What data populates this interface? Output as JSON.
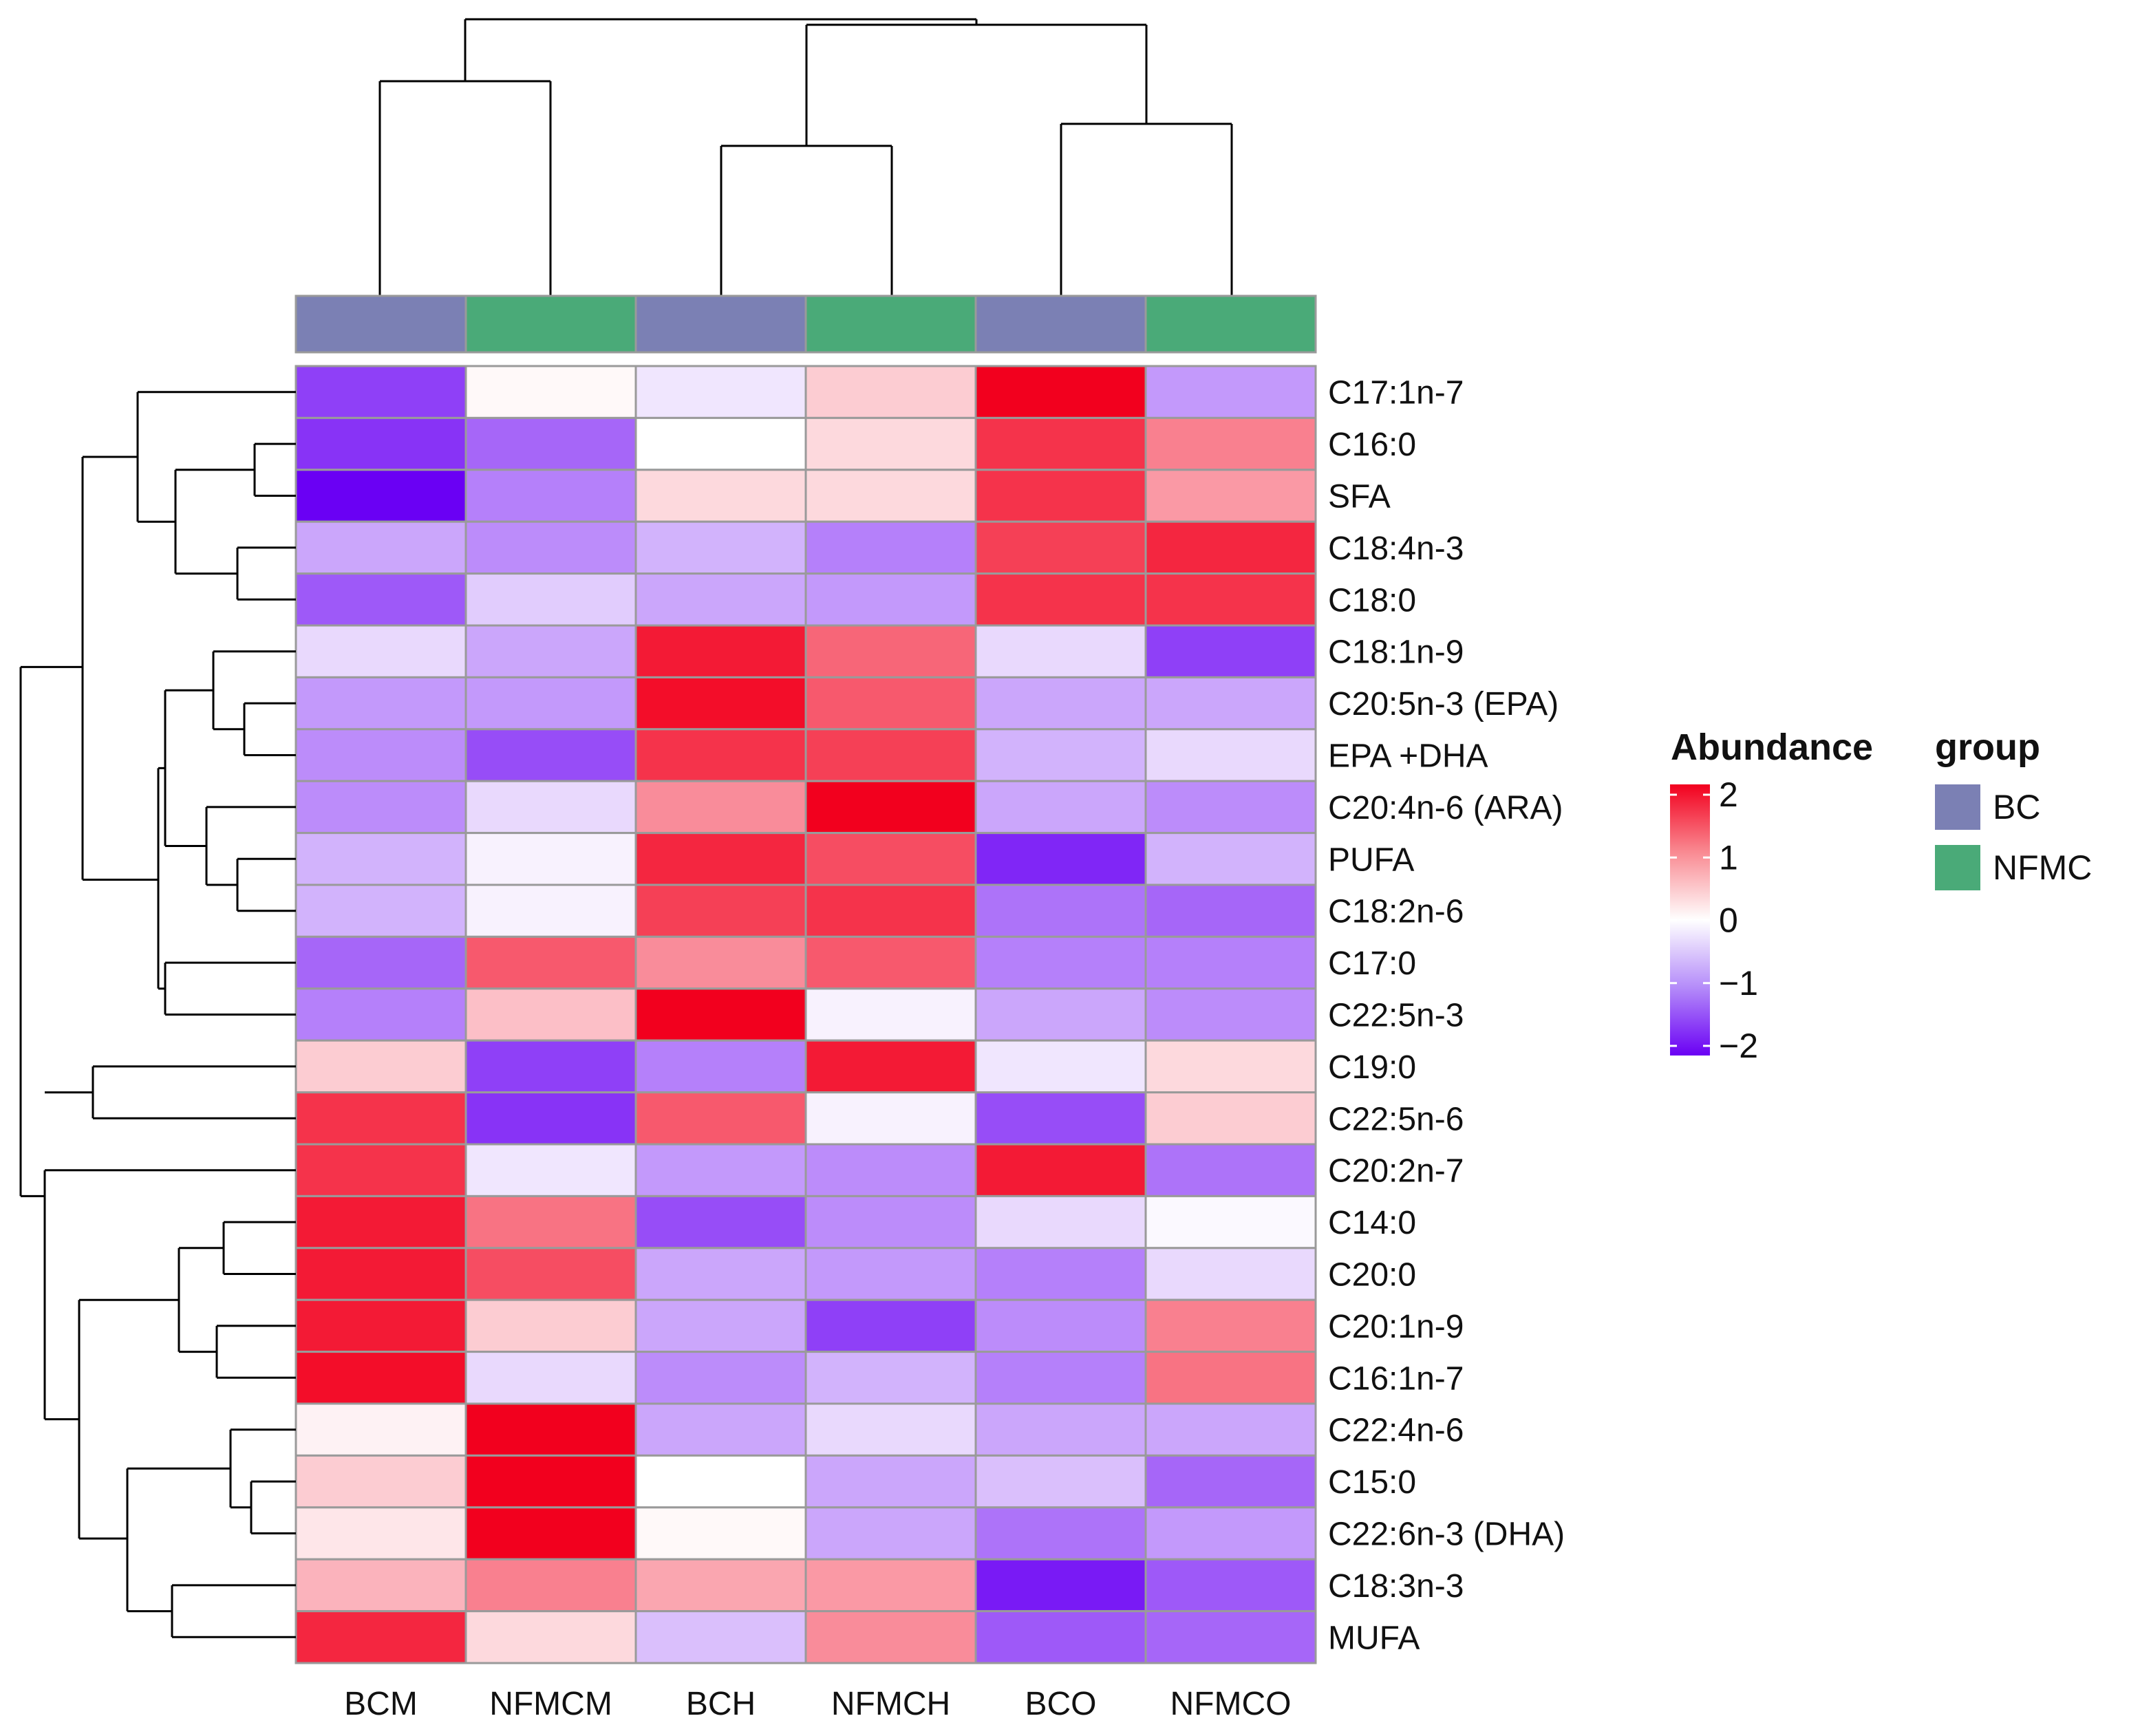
{
  "chart_data": {
    "type": "heatmap",
    "title": "",
    "columns": [
      "BCM",
      "NFMCM",
      "BCH",
      "NFMCH",
      "BCO",
      "NFMCO"
    ],
    "column_groups": [
      "BC",
      "NFMC",
      "BC",
      "NFMC",
      "BC",
      "NFMC"
    ],
    "rows": [
      "C17:1n-7",
      "C16:0",
      "SFA",
      "C18:4n-3",
      "C18:0",
      "C18:1n-9",
      "C20:5n-3 (EPA)",
      "EPA +DHA",
      "C20:4n-6 (ARA)",
      "PUFA",
      "C18:2n-6",
      "C17:0",
      "C22:5n-3",
      "C19:0",
      "C22:5n-6",
      "C20:2n-7",
      "C14:0",
      "C20:0",
      "C20:1n-9",
      "C16:1n-7",
      "C22:4n-6",
      "C15:0",
      "C22:6n-3 (DHA)",
      "C18:3n-3",
      "MUFA"
    ],
    "values": [
      [
        -1.5,
        0.05,
        -0.2,
        0.4,
        2.0,
        -0.8
      ],
      [
        -1.6,
        -1.2,
        0.0,
        0.3,
        1.6,
        1.0
      ],
      [
        -2.0,
        -1.0,
        0.3,
        0.3,
        1.6,
        0.8
      ],
      [
        -0.7,
        -0.9,
        -0.6,
        -1.0,
        1.5,
        1.7
      ],
      [
        -1.3,
        -0.4,
        -0.7,
        -0.8,
        1.6,
        1.6
      ],
      [
        -0.3,
        -0.7,
        1.8,
        1.2,
        -0.3,
        -1.5
      ],
      [
        -0.8,
        -0.8,
        1.9,
        1.3,
        -0.7,
        -0.7
      ],
      [
        -0.9,
        -1.4,
        1.6,
        1.5,
        -0.6,
        -0.3
      ],
      [
        -0.9,
        -0.3,
        0.9,
        2.0,
        -0.7,
        -0.9
      ],
      [
        -0.6,
        -0.1,
        1.7,
        1.4,
        -1.7,
        -0.6
      ],
      [
        -0.6,
        -0.1,
        1.5,
        1.6,
        -1.1,
        -1.2
      ],
      [
        -1.2,
        1.3,
        0.9,
        1.3,
        -1.0,
        -1.0
      ],
      [
        -1.0,
        0.5,
        2.1,
        -0.1,
        -0.7,
        -0.9
      ],
      [
        0.4,
        -1.5,
        -1.0,
        1.8,
        -0.2,
        0.3
      ],
      [
        1.6,
        -1.6,
        1.3,
        -0.1,
        -1.4,
        0.4
      ],
      [
        1.6,
        -0.2,
        -0.8,
        -0.9,
        1.8,
        -1.1
      ],
      [
        1.8,
        1.1,
        -1.4,
        -0.9,
        -0.3,
        -0.05
      ],
      [
        1.8,
        1.4,
        -0.7,
        -0.8,
        -1.0,
        -0.3
      ],
      [
        1.8,
        0.4,
        -0.7,
        -1.5,
        -0.9,
        1.0
      ],
      [
        1.9,
        -0.3,
        -0.9,
        -0.6,
        -1.0,
        1.1
      ],
      [
        0.1,
        2.1,
        -0.7,
        -0.3,
        -0.7,
        -0.7
      ],
      [
        0.4,
        2.0,
        0.0,
        -0.7,
        -0.5,
        -1.2
      ],
      [
        0.2,
        2.0,
        0.05,
        -0.7,
        -1.1,
        -0.8
      ],
      [
        0.6,
        1.0,
        0.7,
        0.8,
        -1.8,
        -1.3
      ],
      [
        1.7,
        0.3,
        -0.5,
        0.9,
        -1.3,
        -1.2
      ]
    ],
    "colorscale": {
      "min": -2,
      "mid": 0,
      "max": 2,
      "low_color": "#6a00f4",
      "mid_color": "#ffffff",
      "high_color": "#f2001e"
    },
    "legend": {
      "color_title": "Abundance",
      "color_ticks": [
        "2",
        "1",
        "0",
        "−1",
        "−2"
      ],
      "group_title": "group",
      "groups": [
        {
          "name": "BC",
          "color": "#7b80b4"
        },
        {
          "name": "NFMC",
          "color": "#4aaa78"
        }
      ],
      "placement": "right"
    }
  }
}
